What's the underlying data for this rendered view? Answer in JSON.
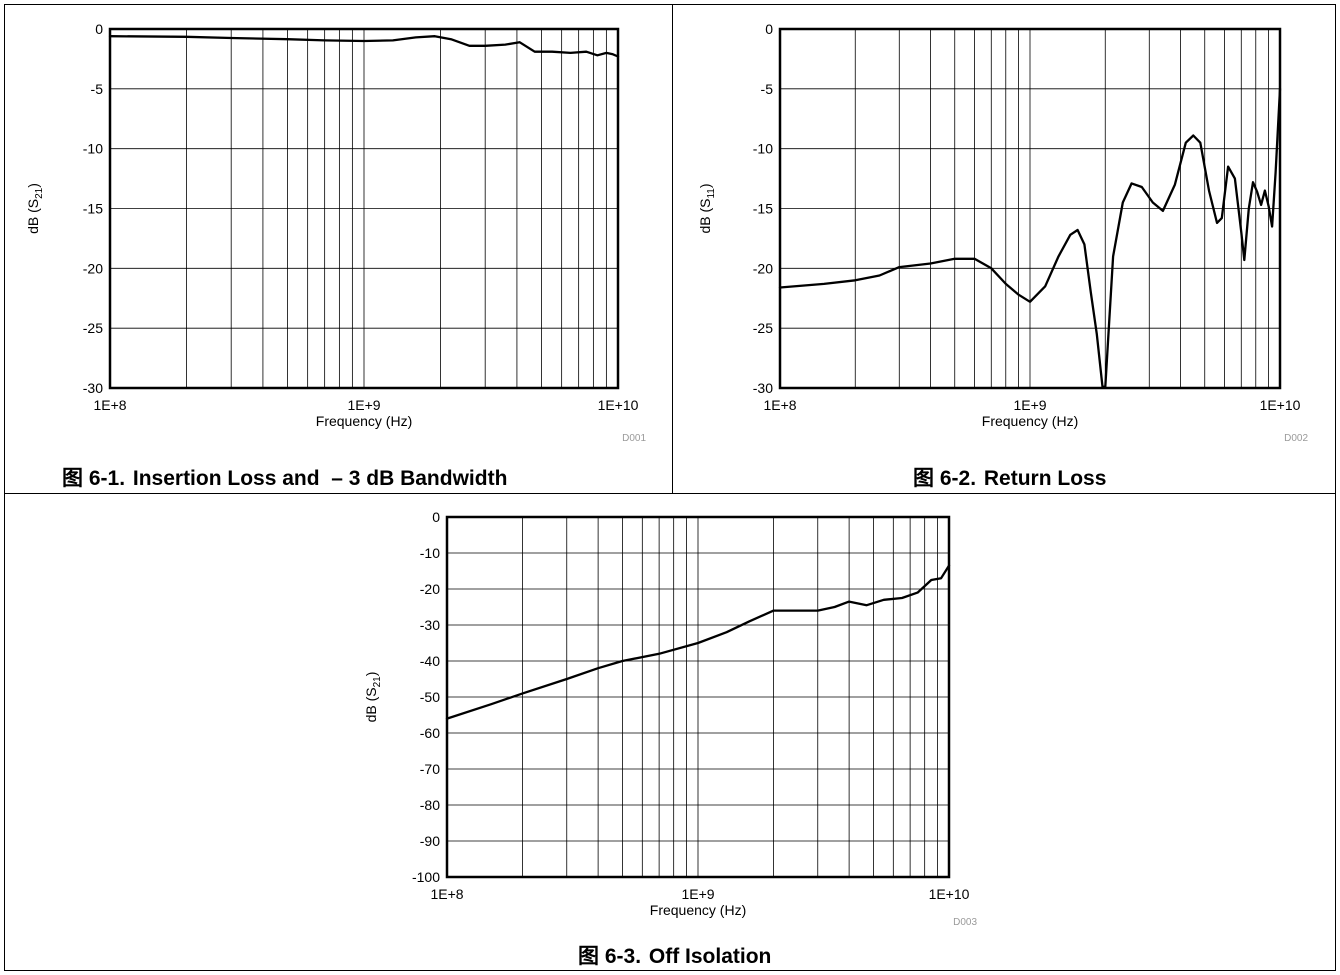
{
  "chart_data": [
    {
      "id": "fig1",
      "type": "line",
      "caption_prefix": "图",
      "caption_number": "6-1.",
      "caption_text": "Insertion Loss and  – 3 dB Bandwidth",
      "xlabel": "Frequency (Hz)",
      "ylabel_main": "dB (S",
      "ylabel_sub": "21",
      "ylabel_end": ")",
      "code": "D001",
      "x_scale": "log",
      "xlim": [
        100000000,
        10000000000
      ],
      "ylim": [
        -30,
        0
      ],
      "x_ticks": [
        100000000,
        1000000000,
        10000000000
      ],
      "x_tick_labels": [
        "1E+8",
        "1E+9",
        "1E+10"
      ],
      "y_ticks": [
        0,
        -5,
        -10,
        -15,
        -20,
        -25,
        -30
      ],
      "y_tick_labels": [
        "0",
        "-5",
        "-10",
        "-15",
        "-20",
        "-25",
        "-30"
      ],
      "grid": true,
      "series": [
        {
          "x": [
            100000000,
            200000000,
            300000000,
            500000000,
            700000000,
            1000000000,
            1300000000,
            1600000000,
            1900000000,
            2200000000,
            2600000000,
            3000000000,
            3600000000,
            4100000000,
            4700000000,
            5500000000,
            6500000000,
            7500000000,
            8300000000,
            9000000000,
            9500000000,
            10000000000
          ],
          "y": [
            -0.6,
            -0.65,
            -0.75,
            -0.85,
            -0.95,
            -1.0,
            -0.95,
            -0.7,
            -0.6,
            -0.85,
            -1.4,
            -1.4,
            -1.3,
            -1.1,
            -1.9,
            -1.9,
            -2.0,
            -1.9,
            -2.2,
            -2.0,
            -2.1,
            -2.3
          ]
        }
      ]
    },
    {
      "id": "fig2",
      "type": "line",
      "caption_prefix": "图",
      "caption_number": "6-2.",
      "caption_text": "Return Loss",
      "xlabel": "Frequency (Hz)",
      "ylabel_main": "dB (S",
      "ylabel_sub": "11",
      "ylabel_end": ")",
      "code": "D002",
      "x_scale": "log",
      "xlim": [
        100000000,
        10000000000
      ],
      "ylim": [
        -30,
        0
      ],
      "x_ticks": [
        100000000,
        1000000000,
        10000000000
      ],
      "x_tick_labels": [
        "1E+8",
        "1E+9",
        "1E+10"
      ],
      "y_ticks": [
        0,
        -5,
        -10,
        -15,
        -20,
        -25,
        -30
      ],
      "y_tick_labels": [
        "0",
        "-5",
        "-10",
        "-15",
        "-20",
        "-25",
        "-30"
      ],
      "grid": true,
      "series": [
        {
          "x": [
            100000000,
            150000000,
            200000000,
            250000000,
            300000000,
            400000000,
            500000000,
            600000000,
            700000000,
            800000000,
            900000000,
            1000000000,
            1150000000,
            1300000000,
            1450000000,
            1550000000,
            1650000000,
            1750000000,
            1850000000,
            1950000000,
            2000000000,
            2150000000,
            2350000000,
            2550000000,
            2800000000,
            3100000000,
            3400000000,
            3800000000,
            4200000000,
            4500000000,
            4800000000,
            5200000000,
            5600000000,
            5850000000,
            6200000000,
            6600000000,
            7000000000,
            7200000000,
            7500000000,
            7800000000,
            8100000000,
            8400000000,
            8700000000,
            9000000000,
            9300000000,
            9600000000,
            10000000000
          ],
          "y": [
            -21.6,
            -21.3,
            -21.0,
            -20.6,
            -19.9,
            -19.6,
            -19.2,
            -19.2,
            -20.0,
            -21.3,
            -22.2,
            -22.8,
            -21.5,
            -19.0,
            -17.2,
            -16.8,
            -18.0,
            -22.0,
            -25.5,
            -29.9,
            -29.9,
            -19.0,
            -14.5,
            -12.9,
            -13.2,
            -14.5,
            -15.2,
            -13.0,
            -9.5,
            -8.9,
            -9.5,
            -13.5,
            -16.2,
            -15.8,
            -11.5,
            -12.5,
            -17.0,
            -19.3,
            -15.0,
            -12.8,
            -13.6,
            -14.7,
            -13.5,
            -14.8,
            -16.5,
            -12.0,
            -5.0
          ]
        }
      ]
    },
    {
      "id": "fig3",
      "type": "line",
      "caption_prefix": "图",
      "caption_number": "6-3.",
      "caption_text": "Off Isolation",
      "xlabel": "Frequency (Hz)",
      "ylabel_main": "dB (S",
      "ylabel_sub": "21",
      "ylabel_end": ")",
      "code": "D003",
      "x_scale": "log",
      "xlim": [
        100000000,
        10000000000
      ],
      "ylim": [
        -100,
        0
      ],
      "x_ticks": [
        100000000,
        1000000000,
        10000000000
      ],
      "x_tick_labels": [
        "1E+8",
        "1E+9",
        "1E+10"
      ],
      "y_ticks": [
        0,
        -10,
        -20,
        -30,
        -40,
        -50,
        -60,
        -70,
        -80,
        -90,
        -100
      ],
      "y_tick_labels": [
        "0",
        "-10",
        "-20",
        "-30",
        "-40",
        "-50",
        "-60",
        "-70",
        "-80",
        "-90",
        "-100"
      ],
      "grid": true,
      "series": [
        {
          "x": [
            100000000,
            150000000,
            200000000,
            300000000,
            400000000,
            500000000,
            700000000,
            1000000000,
            1300000000,
            1600000000,
            2000000000,
            2400000000,
            3000000000,
            3500000000,
            4000000000,
            4700000000,
            5500000000,
            6500000000,
            7500000000,
            8500000000,
            9300000000,
            10000000000
          ],
          "y": [
            -56,
            -52,
            -49,
            -45,
            -42,
            -40,
            -38,
            -35,
            -32,
            -29,
            -26,
            -26,
            -26,
            -25,
            -23.5,
            -24.5,
            -23,
            -22.5,
            -21,
            -17.5,
            -17,
            -13.5
          ]
        }
      ]
    }
  ]
}
